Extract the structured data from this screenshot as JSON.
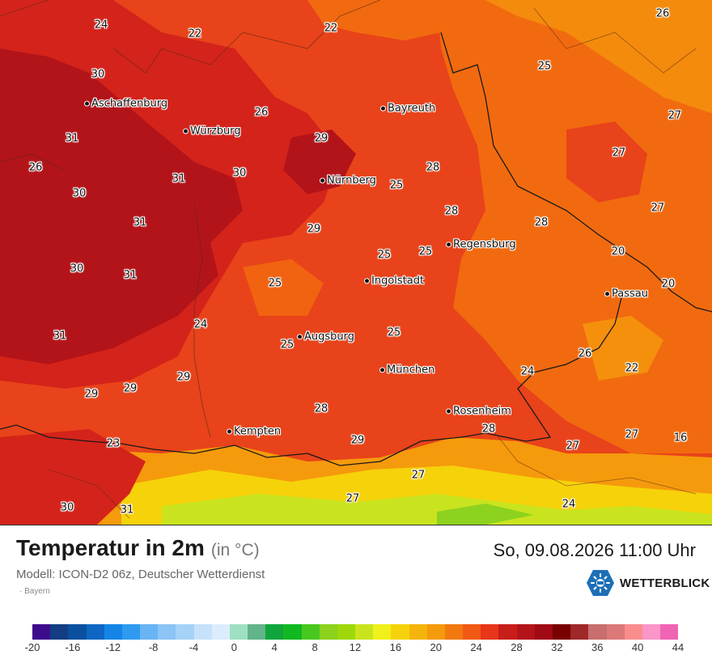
{
  "title": "Temperatur in 2m",
  "unit": "(in °C)",
  "datetime": "So, 09.08.2026 11:00 Uhr",
  "model": "Modell: ICON-D2 06z, Deutscher Wetterdienst",
  "region": "Bayern",
  "brand": "WETTERBLICK",
  "colors": {
    "very_hot": "#b3141a",
    "hot": "#d4231a",
    "warm": "#e8431a",
    "mild": "#f26a0f",
    "moderate": "#f59a0c",
    "cool": "#f6d20a",
    "cooler": "#c9e41e",
    "coolest": "#8cd21e",
    "brand_blue": "#1d6fb6"
  },
  "cities": [
    {
      "id": "aschaffenburg",
      "name": "Aschaffenburg"
    },
    {
      "id": "wuerzburg",
      "name": "Würzburg"
    },
    {
      "id": "bayreuth",
      "name": "Bayreuth"
    },
    {
      "id": "nuernberg",
      "name": "Nürnberg"
    },
    {
      "id": "regensburg",
      "name": "Regensburg"
    },
    {
      "id": "ingolstadt",
      "name": "Ingolstadt"
    },
    {
      "id": "passau",
      "name": "Passau"
    },
    {
      "id": "augsburg",
      "name": "Augsburg"
    },
    {
      "id": "muenchen",
      "name": "München"
    },
    {
      "id": "rosenheim",
      "name": "Rosenheim"
    },
    {
      "id": "kempten",
      "name": "Kempten"
    }
  ],
  "values": [
    "24",
    "22",
    "22",
    "26",
    "30",
    "25",
    "26",
    "27",
    "31",
    "29",
    "27",
    "26",
    "30",
    "31",
    "28",
    "25",
    "30",
    "31",
    "29",
    "28",
    "25",
    "25",
    "20",
    "31",
    "30",
    "28",
    "25",
    "27",
    "20",
    "31",
    "24",
    "25",
    "25",
    "26",
    "24",
    "22",
    "29",
    "29",
    "29",
    "28",
    "23",
    "29",
    "28",
    "27",
    "16",
    "27",
    "30",
    "31",
    "27",
    "24"
  ],
  "legend": {
    "colors": [
      "#3c0c8c",
      "#123d82",
      "#0b4fa0",
      "#0e67c2",
      "#1485e6",
      "#2e9bf0",
      "#69b4f4",
      "#8cc4f6",
      "#a6d2f8",
      "#c6e2fa",
      "#dcecfc",
      "#9ee0c2",
      "#62b48a",
      "#10a53c",
      "#11b820",
      "#48c81e",
      "#8cd21e",
      "#9ed80a",
      "#c9e41e",
      "#f0f01a",
      "#f6d20a",
      "#f5b40c",
      "#f59a0c",
      "#f2780f",
      "#f05a14",
      "#e8361a",
      "#c81e1a",
      "#b3141a",
      "#a00a14",
      "#780000",
      "#a02828",
      "#c86e6e",
      "#dc7878",
      "#fa8c8c",
      "#fa96c8",
      "#f064b4"
    ],
    "ticks": [
      "-20",
      "-16",
      "-12",
      "-8",
      "-4",
      "0",
      "4",
      "8",
      "12",
      "16",
      "20",
      "24",
      "28",
      "32",
      "36",
      "40",
      "44"
    ]
  }
}
